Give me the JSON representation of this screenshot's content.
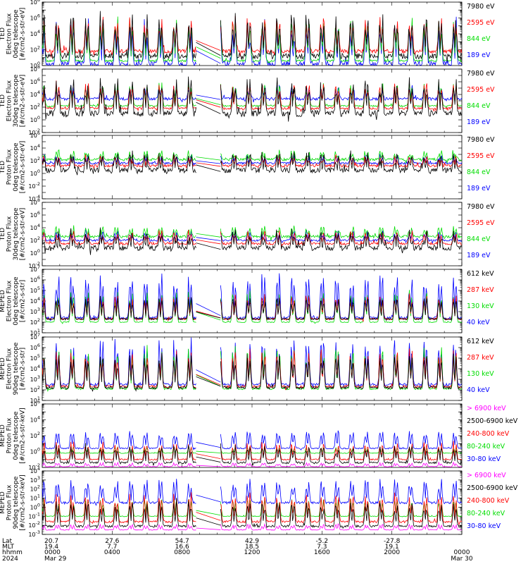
{
  "chart_data": [
    {
      "type": "line",
      "ylabel_lines": [
        "TED",
        "Electron Flux",
        "0deg telescope",
        "[#/cm2-s-str-eV]"
      ],
      "ytick_labels": [
        "10^0",
        "10^2",
        "10^4",
        "10^6",
        "10^8"
      ],
      "ylim_log10": [
        0,
        8
      ],
      "log_y": true,
      "series": [
        {
          "name": "7980 eV",
          "color": "#000000"
        },
        {
          "name": "2595 eV",
          "color": "#ff0000"
        },
        {
          "name": "844 eV",
          "color": "#00dd00"
        },
        {
          "name": "189 eV",
          "color": "#0000ff"
        }
      ],
      "baseline_log10": [
        1.2,
        1.8,
        0.6,
        0.2
      ],
      "peak_log10": [
        5.5,
        5.2,
        5.0,
        4.4
      ],
      "noise_log10": [
        0.9,
        0.6,
        0.3,
        0.9
      ]
    },
    {
      "type": "line",
      "ylabel_lines": [
        "TED",
        "Electron Flux",
        "30deg telescope",
        "[#/cm2-s-str-eV]"
      ],
      "ytick_labels": [
        "10^-2",
        "10^0",
        "10^2",
        "10^4",
        "10^6",
        "10^8"
      ],
      "ylim_log10": [
        -2,
        8
      ],
      "log_y": true,
      "series": [
        {
          "name": "7980 eV",
          "color": "#000000"
        },
        {
          "name": "2595 eV",
          "color": "#ff0000"
        },
        {
          "name": "844 eV",
          "color": "#00dd00"
        },
        {
          "name": "189 eV",
          "color": "#0000ff"
        }
      ],
      "baseline_log10": [
        1.0,
        1.8,
        2.2,
        3.3
      ],
      "peak_log10": [
        5.4,
        5.2,
        5.1,
        4.8
      ],
      "noise_log10": [
        1.2,
        0.4,
        0.3,
        0.6
      ]
    },
    {
      "type": "line",
      "ylabel_lines": [
        "TED",
        "Proton Flux",
        "0deg telescope",
        "[#/cm2-s-str-eV]"
      ],
      "ytick_labels": [
        "10^-4",
        "10^-2",
        "10^0",
        "10^2",
        "10^4",
        "10^6"
      ],
      "ylim_log10": [
        -4,
        6
      ],
      "log_y": true,
      "series": [
        {
          "name": "7980 eV",
          "color": "#000000"
        },
        {
          "name": "2595 eV",
          "color": "#ff0000"
        },
        {
          "name": "844 eV",
          "color": "#00dd00"
        },
        {
          "name": "189 eV",
          "color": "#0000ff"
        }
      ],
      "baseline_log10": [
        0.5,
        1.2,
        2.2,
        1.6
      ],
      "peak_log10": [
        2.6,
        2.4,
        3.2,
        2.6
      ],
      "noise_log10": [
        1.0,
        0.5,
        0.5,
        0.4
      ]
    },
    {
      "type": "line",
      "ylabel_lines": [
        "TED",
        "Proton Flux",
        "30deg telescope",
        "[#/cm2-s-str-eV]"
      ],
      "ytick_labels": [
        "10^-2",
        "10^0",
        "10^2",
        "10^4",
        "10^6",
        "10^8"
      ],
      "ylim_log10": [
        -2,
        8
      ],
      "log_y": true,
      "series": [
        {
          "name": "7980 eV",
          "color": "#000000"
        },
        {
          "name": "2595 eV",
          "color": "#ff0000"
        },
        {
          "name": "844 eV",
          "color": "#00dd00"
        },
        {
          "name": "189 eV",
          "color": "#0000ff"
        }
      ],
      "baseline_log10": [
        0.8,
        1.5,
        2.6,
        2.0
      ],
      "peak_log10": [
        2.8,
        3.0,
        3.8,
        3.2
      ],
      "noise_log10": [
        1.0,
        0.5,
        0.5,
        0.4
      ]
    },
    {
      "type": "line",
      "ylabel_lines": [
        "MEPED",
        "Electron Flux",
        "0deg telescope",
        "[#/cm2-s-str]"
      ],
      "ytick_labels": [
        "10^1",
        "10^2",
        "10^3",
        "10^4",
        "10^5",
        "10^6",
        "10^7"
      ],
      "ylim_log10": [
        1,
        7
      ],
      "log_y": true,
      "series": [
        {
          "name": "612 keV",
          "color": "#000000"
        },
        {
          "name": "287 keV",
          "color": "#ff0000"
        },
        {
          "name": "130 keV",
          "color": "#00dd00"
        },
        {
          "name": "40 keV",
          "color": "#0000ff"
        }
      ],
      "baseline_log10": [
        2.3,
        2.3,
        2.0,
        2.4
      ],
      "peak_log10": [
        4.0,
        4.2,
        4.4,
        5.8
      ],
      "noise_log10": [
        0.2,
        0.2,
        0.1,
        0.3
      ]
    },
    {
      "type": "line",
      "ylabel_lines": [
        "MEPED",
        "Electron Flux",
        "90deg telescope",
        "[#/cm2-s-str]"
      ],
      "ytick_labels": [
        "10^1",
        "10^2",
        "10^3",
        "10^4",
        "10^5",
        "10^6",
        "10^7"
      ],
      "ylim_log10": [
        1,
        7
      ],
      "log_y": true,
      "series": [
        {
          "name": "612 keV",
          "color": "#000000"
        },
        {
          "name": "287 keV",
          "color": "#ff0000"
        },
        {
          "name": "130 keV",
          "color": "#00dd00"
        },
        {
          "name": "40 keV",
          "color": "#0000ff"
        }
      ],
      "baseline_log10": [
        2.2,
        2.3,
        2.1,
        2.5
      ],
      "peak_log10": [
        4.8,
        5.2,
        5.4,
        6.0
      ],
      "noise_log10": [
        0.3,
        0.3,
        0.2,
        0.3
      ]
    },
    {
      "type": "line",
      "ylabel_lines": [
        "MEPED",
        "Proton Flux",
        "0deg telescope",
        "[#/cm2-s-str-keV]"
      ],
      "ytick_labels": [
        "10^-2",
        "10^0",
        "10^2",
        "10^4",
        "10^6"
      ],
      "ylim_log10": [
        -2,
        6
      ],
      "log_y": true,
      "series": [
        {
          "name": "> 6900 keV",
          "color": "#ff00ff"
        },
        {
          "name": "2500-6900 keV",
          "color": "#000000"
        },
        {
          "name": "240-800 keV",
          "color": "#ff0000"
        },
        {
          "name": "80-240 keV",
          "color": "#00dd00"
        },
        {
          "name": "30-80 keV",
          "color": "#0000ff"
        }
      ],
      "baseline_log10": [
        -1.9,
        -1.4,
        -1.0,
        -0.2,
        0.4
      ],
      "peak_log10": [
        -1.5,
        0.4,
        0.8,
        0.4,
        2.3
      ],
      "noise_log10": [
        0.1,
        0.3,
        0.2,
        0.1,
        0.2
      ]
    },
    {
      "type": "line",
      "ylabel_lines": [
        "MEPED",
        "Proton Flux",
        "90deg telescope",
        "[#/cm2-s-str-keV]"
      ],
      "ytick_labels": [
        "10^-3",
        "10^-2",
        "10^-1",
        "10^0",
        "10^1",
        "10^2",
        "10^3",
        "10^4"
      ],
      "ylim_log10": [
        -3,
        4
      ],
      "log_y": true,
      "series": [
        {
          "name": "> 6900 keV",
          "color": "#ff00ff"
        },
        {
          "name": "2500-6900 keV",
          "color": "#000000"
        },
        {
          "name": "240-800 keV",
          "color": "#ff0000"
        },
        {
          "name": "80-240 keV",
          "color": "#00dd00"
        },
        {
          "name": "30-80 keV",
          "color": "#0000ff"
        }
      ],
      "baseline_log10": [
        -2.5,
        -2.1,
        -1.6,
        -1.0,
        0.5
      ],
      "peak_log10": [
        -2.0,
        0.2,
        1.0,
        0.6,
        2.6
      ],
      "noise_log10": [
        0.1,
        0.3,
        0.3,
        0.1,
        0.3
      ]
    }
  ],
  "time_axis": {
    "start": "2024-03-29 00:00",
    "end": "2024-03-30 00:00",
    "gap_start": "0848",
    "gap_end": "1012",
    "rows": [
      {
        "label": "Lat",
        "values": [
          "20.7",
          "27.6",
          "54.7",
          "42.9",
          "-5.2",
          "-27.8",
          ""
        ]
      },
      {
        "label": "MLT",
        "values": [
          "19.4",
          "7.7",
          "16.6",
          "18.5",
          "7.3",
          "19.1",
          ""
        ]
      },
      {
        "label": "hhmm",
        "values": [
          "0000",
          "0400",
          "0800",
          "1200",
          "1600",
          "2000",
          "0000"
        ]
      },
      {
        "label": "2024",
        "values": [
          "Mar 29",
          "",
          "",
          "",
          "",
          "",
          "Mar 30"
        ]
      }
    ]
  }
}
